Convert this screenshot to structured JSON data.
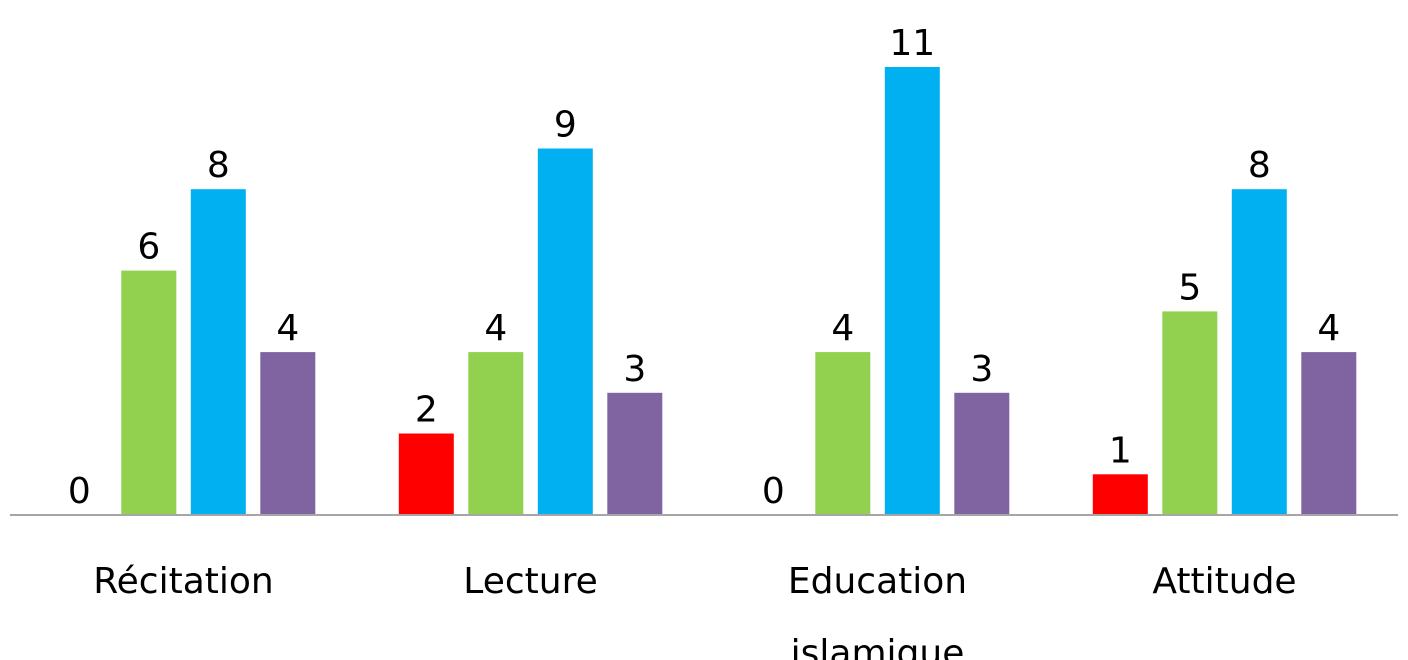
{
  "chart_data": {
    "type": "bar",
    "categories": [
      "Récitation",
      "Lecture",
      "Education islamique",
      "Attitude"
    ],
    "category_lines": [
      [
        "Récitation"
      ],
      [
        "Lecture"
      ],
      [
        "Education",
        "islamique"
      ],
      [
        "Attitude"
      ]
    ],
    "series": [
      {
        "color": "#ff0000",
        "values": [
          0,
          2,
          0,
          1
        ]
      },
      {
        "color": "#92d050",
        "values": [
          6,
          4,
          4,
          5
        ]
      },
      {
        "color": "#00b0f0",
        "values": [
          8,
          9,
          11,
          8
        ]
      },
      {
        "color": "#8064a2",
        "values": [
          4,
          3,
          3,
          4
        ]
      }
    ],
    "data_labels": true,
    "title": "",
    "xlabel": "",
    "ylabel": "",
    "ylim": [
      0,
      11
    ],
    "y_axis_visible": false,
    "grid": false,
    "legend": "none",
    "axis_color": "#a6a6a6"
  }
}
